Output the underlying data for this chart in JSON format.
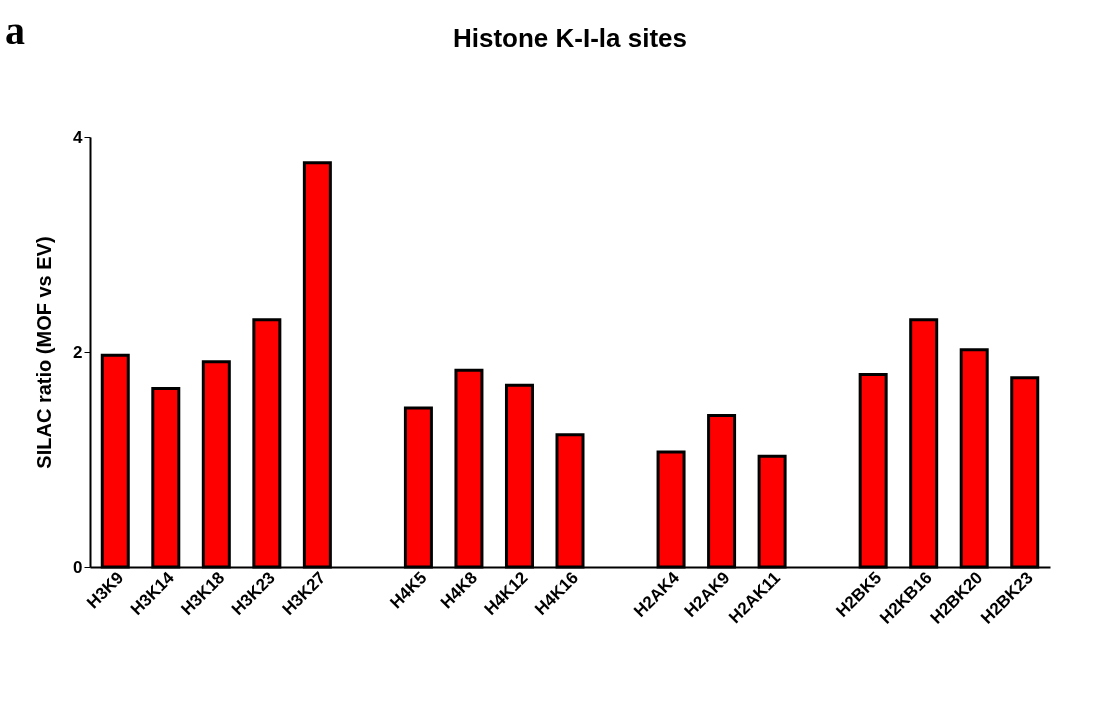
{
  "chart_data": {
    "type": "bar",
    "title": "Histone K-I-la sites",
    "ylabel": "SILAC ratio (MOF vs EV)",
    "categories": [
      "H3K9",
      "H3K14",
      "H3K18",
      "H3K23",
      "H3K27",
      null,
      "H4K5",
      "H4K8",
      "H4K12",
      "H4K16",
      null,
      "H2AK4",
      "H2AK9",
      "H2AK11",
      null,
      "H2BK5",
      "H2KB16",
      "H2BK20",
      "H2BK23"
    ],
    "values": [
      1.97,
      1.66,
      1.91,
      2.3,
      3.76,
      null,
      1.48,
      1.83,
      1.69,
      1.23,
      null,
      1.07,
      1.41,
      1.03,
      null,
      1.79,
      2.3,
      2.02,
      1.76
    ],
    "color": "#ff0000",
    "ylim": [
      0,
      4
    ],
    "yticks": [
      0,
      2,
      4
    ],
    "grid": false,
    "annotations": [
      "a"
    ]
  }
}
